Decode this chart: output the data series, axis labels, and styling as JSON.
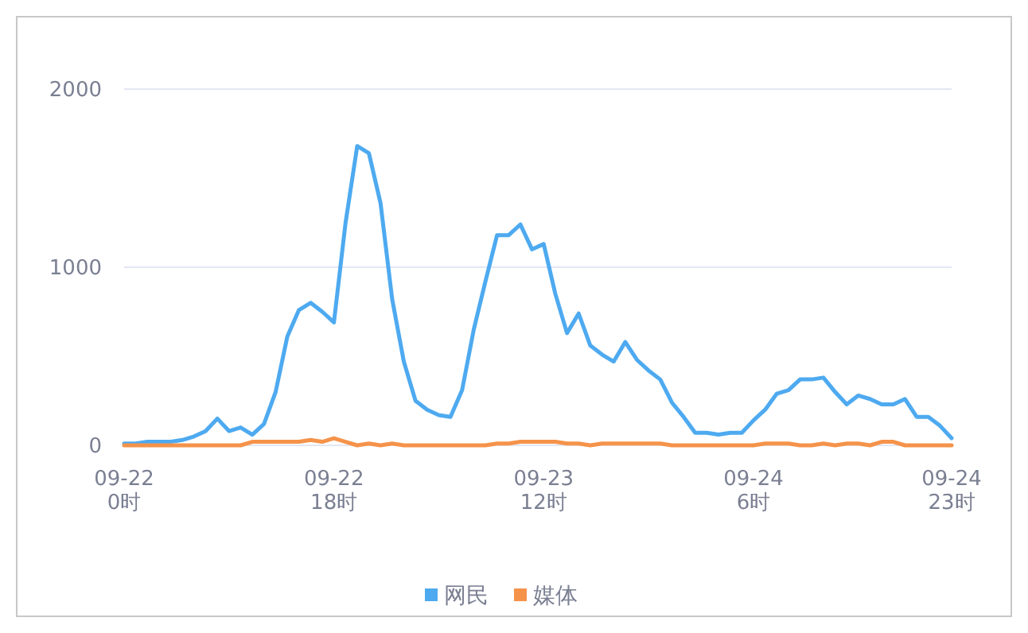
{
  "chart_data": {
    "type": "line",
    "categories": [
      "09-22\n0时",
      null,
      null,
      null,
      null,
      null,
      null,
      null,
      null,
      null,
      null,
      null,
      null,
      null,
      null,
      null,
      null,
      null,
      "09-22\n18时",
      null,
      null,
      null,
      null,
      null,
      null,
      null,
      null,
      null,
      null,
      null,
      null,
      null,
      null,
      null,
      null,
      null,
      "09-23\n12时",
      null,
      null,
      null,
      null,
      null,
      null,
      null,
      null,
      null,
      null,
      null,
      null,
      null,
      null,
      null,
      null,
      null,
      "09-24\n6时",
      null,
      null,
      null,
      null,
      null,
      null,
      null,
      null,
      null,
      null,
      null,
      null,
      null,
      null,
      null,
      null,
      "09-24\n23时"
    ],
    "series": [
      {
        "name": "网民",
        "color": "#4eaaf0",
        "values": [
          10,
          10,
          20,
          20,
          20,
          30,
          50,
          80,
          150,
          80,
          100,
          60,
          120,
          300,
          610,
          760,
          800,
          750,
          690,
          1250,
          1680,
          1640,
          1360,
          820,
          470,
          250,
          200,
          170,
          160,
          310,
          650,
          920,
          1180,
          1180,
          1240,
          1100,
          1130,
          850,
          630,
          740,
          560,
          510,
          470,
          580,
          480,
          420,
          370,
          240,
          160,
          70,
          70,
          60,
          70,
          70,
          140,
          200,
          290,
          310,
          370,
          370,
          380,
          300,
          230,
          280,
          260,
          230,
          230,
          260,
          160,
          160,
          110,
          40
        ]
      },
      {
        "name": "媒体",
        "color": "#f5934a",
        "values": [
          0,
          0,
          0,
          0,
          0,
          0,
          0,
          0,
          0,
          0,
          0,
          20,
          20,
          20,
          20,
          20,
          30,
          20,
          40,
          20,
          0,
          10,
          0,
          10,
          0,
          0,
          0,
          0,
          0,
          0,
          0,
          0,
          10,
          10,
          20,
          20,
          20,
          20,
          10,
          10,
          0,
          10,
          10,
          10,
          10,
          10,
          10,
          0,
          0,
          0,
          0,
          0,
          0,
          0,
          0,
          10,
          10,
          10,
          0,
          0,
          10,
          0,
          10,
          10,
          0,
          20,
          20,
          0,
          0,
          0,
          0,
          0
        ]
      }
    ],
    "ylim": [
      0,
      2000
    ],
    "yticks": [
      0,
      1000,
      2000
    ],
    "grid": "y",
    "legend": "bottom",
    "marker": "none",
    "line_style": "solid"
  }
}
